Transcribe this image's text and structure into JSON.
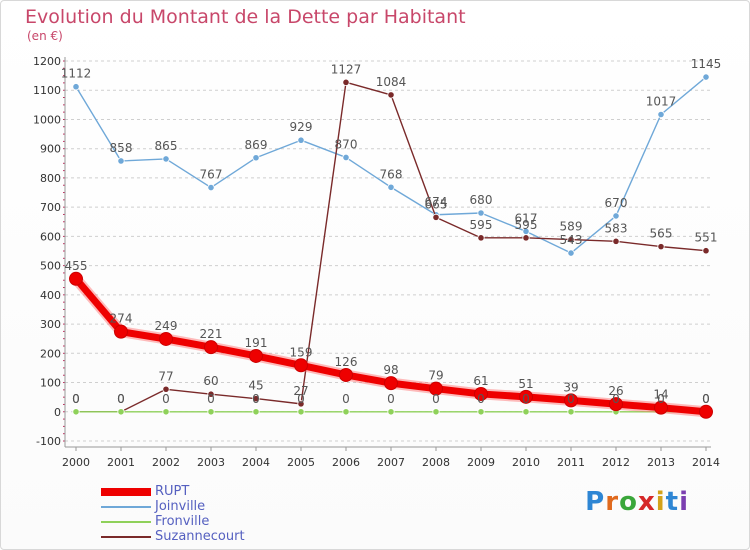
{
  "title": "Evolution du Montant de la Dette par Habitant",
  "subtitle": "(en €)",
  "brand": {
    "text": "Proxiti",
    "letter_colors": [
      "#2e86d4",
      "#e06a1e",
      "#3aa63a",
      "#d62828",
      "#d4a21a",
      "#2e86d4",
      "#7b3fb0"
    ]
  },
  "chart_data": {
    "type": "line",
    "title": "Evolution du Montant de la Dette par Habitant",
    "subtitle": "(en €)",
    "x": [
      "2000",
      "2001",
      "2002",
      "2003",
      "2004",
      "2005",
      "2006",
      "2007",
      "2008",
      "2009",
      "2010",
      "2011",
      "2012",
      "2013",
      "2014"
    ],
    "ylim": [
      -100,
      1200
    ],
    "yticks": [
      -100,
      0,
      100,
      200,
      300,
      400,
      500,
      600,
      700,
      800,
      900,
      1000,
      1100,
      1200
    ],
    "grid": "horizontal dashed",
    "legend_position": "bottom-left",
    "series": [
      {
        "name": "RUPT",
        "color": "#ee0000",
        "values": [
          455,
          274,
          249,
          221,
          191,
          159,
          126,
          98,
          79,
          61,
          51,
          39,
          26,
          14,
          0
        ],
        "labels": [
          "455",
          "274",
          "249",
          "221",
          "191",
          "159",
          "126",
          "98",
          "79",
          "61",
          "51",
          "39",
          "26",
          "14",
          "0"
        ]
      },
      {
        "name": "Joinville",
        "color": "#6fa8d8",
        "values": [
          1112,
          858,
          865,
          767,
          869,
          929,
          870,
          768,
          674,
          680,
          617,
          543,
          670,
          1017,
          1145
        ],
        "labels": [
          "1112",
          "858",
          "865",
          "767",
          "869",
          "929",
          "870",
          "768",
          "674",
          "680",
          "617",
          "543",
          "670",
          "1017",
          "1145"
        ]
      },
      {
        "name": "Fronville",
        "color": "#8fd15a",
        "values": [
          0,
          0,
          0,
          0,
          0,
          0,
          0,
          0,
          0,
          0,
          0,
          0,
          0,
          0,
          0
        ],
        "labels": [
          "0",
          "0",
          "0",
          "0",
          "0",
          "0",
          "0",
          "0",
          "0",
          "0",
          "0",
          "0",
          "0",
          "0",
          "0"
        ]
      },
      {
        "name": "Suzannecourt",
        "color": "#7a2a2a",
        "values": [
          0,
          0,
          77,
          60,
          45,
          27,
          1127,
          1084,
          665,
          595,
          595,
          589,
          583,
          565,
          551
        ],
        "labels": [
          "0",
          "0",
          "77",
          "60",
          "45",
          "27",
          "1127",
          "1084",
          "665",
          "595",
          "595",
          "589",
          "583",
          "565",
          "551"
        ]
      }
    ]
  }
}
